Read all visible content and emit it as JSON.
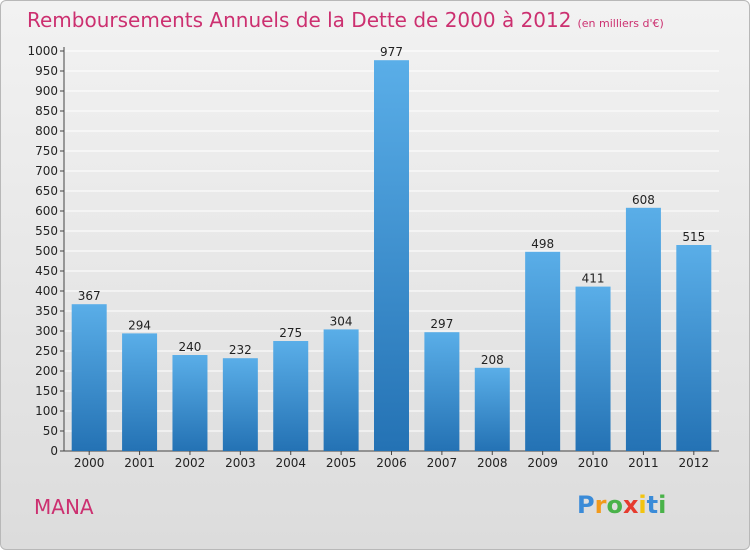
{
  "title": "Remboursements Annuels de la Dette de 2000 à 2012",
  "title_unit": "(en milliers d'€)",
  "location": "MANA",
  "brand": "Proxiti",
  "colors": {
    "title": "#cc3070",
    "bar_top": "#5aaee8",
    "bar_bottom": "#2472b4",
    "grid": "#ffffff"
  },
  "chart_data": {
    "type": "bar",
    "title": "Remboursements Annuels de la Dette de 2000 à 2012",
    "categories": [
      "2000",
      "2001",
      "2002",
      "2003",
      "2004",
      "2005",
      "2006",
      "2007",
      "2008",
      "2009",
      "2010",
      "2011",
      "2012"
    ],
    "values": [
      367,
      294,
      240,
      232,
      275,
      304,
      977,
      297,
      208,
      498,
      411,
      608,
      515
    ],
    "ylim": [
      0,
      1000
    ],
    "ytick_step": 50,
    "grid": true,
    "data_labels": true
  }
}
